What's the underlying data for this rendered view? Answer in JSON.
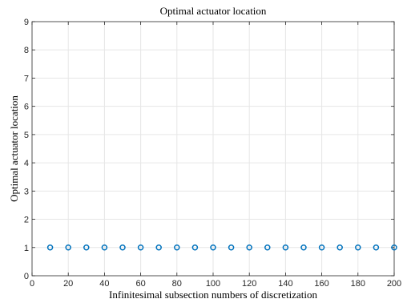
{
  "chart_data": {
    "type": "scatter",
    "title": "Optimal actuator location",
    "xlabel": "Infinitesimal subsection numbers of discretization",
    "ylabel": "Optimal actuator location",
    "xlim": [
      0,
      200
    ],
    "ylim": [
      0,
      9
    ],
    "xticks": [
      0,
      20,
      40,
      60,
      80,
      100,
      120,
      140,
      160,
      180,
      200
    ],
    "yticks": [
      0,
      1,
      2,
      3,
      4,
      5,
      6,
      7,
      8,
      9
    ],
    "grid": true,
    "marker": "open-circle",
    "colors": {
      "marker": "#0072BD",
      "grid": "#e6e6e6",
      "axis": "#262626"
    },
    "series": [
      {
        "x": [
          10,
          20,
          30,
          40,
          50,
          60,
          70,
          80,
          90,
          100,
          110,
          120,
          130,
          140,
          150,
          160,
          170,
          180,
          190,
          200
        ],
        "y": [
          1,
          1,
          1,
          1,
          1,
          1,
          1,
          1,
          1,
          1,
          1,
          1,
          1,
          1,
          1,
          1,
          1,
          1,
          1,
          1
        ]
      }
    ]
  }
}
